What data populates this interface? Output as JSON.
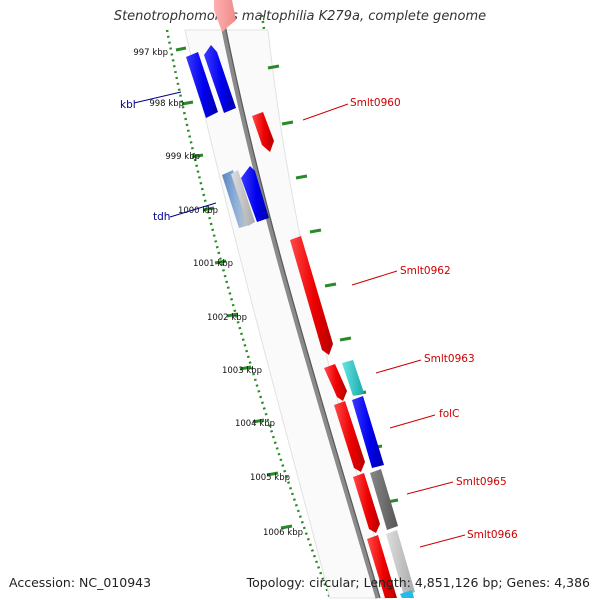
{
  "title": "Stenotrophomonas maltophilia K279a, complete genome",
  "footer": {
    "accession": "Accession: NC_010943",
    "summary": "Topology: circular; Length: 4,851,126 bp; Genes: 4,386"
  },
  "ruler_labels": [
    "997 kbp",
    "998 kbp",
    "999 kbp",
    "1000 kbp",
    "1001 kbp",
    "1002 kbp",
    "1003 kbp",
    "1004 kbp",
    "1005 kbp",
    "1006 kbp"
  ],
  "left_gene_labels": [
    "kbl",
    "tdh"
  ],
  "right_gene_labels": [
    "Smlt0960",
    "Smlt0962",
    "Smlt0963",
    "folC",
    "Smlt0965",
    "Smlt0966"
  ],
  "colors": {
    "forward_strand": "#ff0000",
    "reverse_strand": "#0000ee",
    "cyan_feature": "#22cccc",
    "gray_feature": "#707070",
    "light_gray_feature": "#c4c4c4",
    "backbone": "#888888",
    "ticks": "#2a8a2a",
    "left_label": "#00008b",
    "right_label": "#cc0000"
  }
}
